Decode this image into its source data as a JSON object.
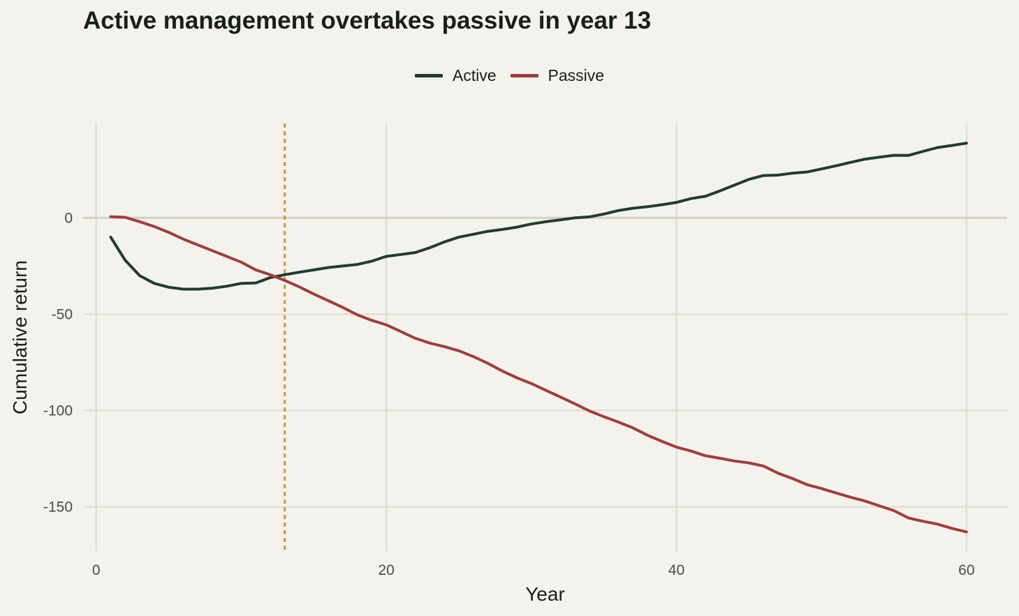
{
  "chart_data": {
    "type": "line",
    "title": "Active management overtakes passive in year 13",
    "xlabel": "Year",
    "ylabel": "Cumulative return",
    "xlim": [
      -0.9,
      62.8
    ],
    "ylim": [
      -173,
      49
    ],
    "xticks": [
      0,
      20,
      40,
      60
    ],
    "yticks": [
      0,
      -50,
      -100,
      -150
    ],
    "legend_position": "top-center",
    "grid": true,
    "reference_line": {
      "axis": "y",
      "value": 0,
      "color": "#d3d1c0"
    },
    "crossover_line": {
      "axis": "x",
      "value": 13,
      "color": "#d4962c",
      "style": "dotted"
    },
    "x": [
      1,
      2,
      3,
      4,
      5,
      6,
      7,
      8,
      9,
      10,
      11,
      12,
      13,
      14,
      15,
      16,
      17,
      18,
      19,
      20,
      21,
      22,
      23,
      24,
      25,
      26,
      27,
      28,
      29,
      30,
      31,
      32,
      33,
      34,
      35,
      36,
      37,
      38,
      39,
      40,
      41,
      42,
      43,
      44,
      45,
      46,
      47,
      48,
      49,
      50,
      51,
      52,
      53,
      54,
      55,
      56,
      57,
      58,
      59,
      60
    ],
    "series": [
      {
        "name": "Active",
        "color": "#203c2c",
        "values": [
          -10,
          -22,
          -30,
          -34,
          -36,
          -37,
          -37,
          -36.5,
          -35.5,
          -34,
          -33.8,
          -31,
          -29.5,
          -28.2,
          -27,
          -25.8,
          -25,
          -24.2,
          -22.5,
          -20,
          -19,
          -18,
          -15.5,
          -12.5,
          -10,
          -8.5,
          -7,
          -6,
          -4.8,
          -3.2,
          -2,
          -1,
          0,
          0.5,
          2,
          3.8,
          5,
          5.8,
          6.8,
          8,
          10,
          11.2,
          14,
          17,
          20,
          22,
          22.2,
          23.2,
          23.8,
          25.4,
          27,
          28.8,
          30.5,
          31.5,
          32.5,
          32.4,
          34.5,
          36.5,
          37.6,
          38.8
        ]
      },
      {
        "name": "Passive",
        "color": "#a03e3a",
        "values": [
          0.6,
          0.3,
          -2,
          -4.5,
          -7.5,
          -11,
          -14,
          -17,
          -20,
          -23,
          -27,
          -29.5,
          -32.5,
          -35.8,
          -39.5,
          -43,
          -46.5,
          -50.3,
          -53.2,
          -55.5,
          -59,
          -62.5,
          -65,
          -66.8,
          -69,
          -72,
          -75.5,
          -79.5,
          -83,
          -86,
          -89.5,
          -93,
          -96.5,
          -100.2,
          -103.2,
          -106,
          -109,
          -112.8,
          -116,
          -119,
          -121,
          -123.5,
          -124.8,
          -126.2,
          -127.2,
          -128.8,
          -132.5,
          -135.3,
          -138.5,
          -140.5,
          -142.8,
          -145,
          -147,
          -149.5,
          -152,
          -155.8,
          -157.5,
          -159,
          -161.2,
          -163
        ]
      }
    ]
  }
}
